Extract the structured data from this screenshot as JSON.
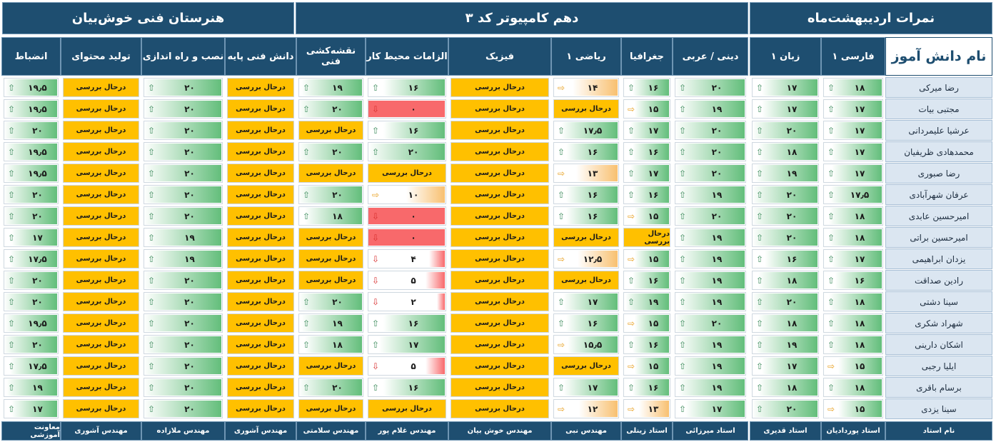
{
  "titles": {
    "school": "هنرستان فنی خوش‌بیان",
    "class": "دهم کامپیوتر کد ۳",
    "grades": "نمرات اردیبهشت‌ماه"
  },
  "columns": [
    {
      "key": "name",
      "label": "نام دانش آموز",
      "teacher": "نام استاد"
    },
    {
      "key": "farsi",
      "label": "فارسی ۱",
      "teacher": "استاد پوردادیان"
    },
    {
      "key": "zaban",
      "label": "زبان ۱",
      "teacher": "استاد قدیری"
    },
    {
      "key": "dini",
      "label": "دینی / عربی",
      "teacher": "استاد میرزائی"
    },
    {
      "key": "joghrafia",
      "label": "جغرافیا",
      "teacher": "استاد زینلی"
    },
    {
      "key": "riazi",
      "label": "ریاضی ۱",
      "teacher": "مهندس نبی"
    },
    {
      "key": "fizik",
      "label": "فیزیک",
      "teacher": "مهندس خوش بیان"
    },
    {
      "key": "elzamat",
      "label": "الزامات محیط کار",
      "teacher": "مهندس غلام پور"
    },
    {
      "key": "naghshe",
      "label": "نقشه‌کشی فنی",
      "teacher": "مهندس سلامتی"
    },
    {
      "key": "danesh",
      "label": "دانش فنی پایه",
      "teacher": "مهندس آشوری"
    },
    {
      "key": "nasb",
      "label": "نصب و راه اندازی",
      "teacher": "مهندس ملازاده"
    },
    {
      "key": "tolid",
      "label": "تولید محتوای",
      "teacher": "مهندس آشوری"
    },
    {
      "key": "enzebat",
      "label": "انضباط",
      "teacher": "معاونت آموزشی"
    }
  ],
  "pending_label": "درحال بررسی",
  "colors": {
    "header_bg": "#1e4e70",
    "pending": "#ffc000",
    "good": "#63be7b",
    "mid": "#f8c070",
    "bad": "#f8696b",
    "name_bg": "#dbe6f1"
  },
  "students": [
    {
      "name": "رضا میرکی",
      "grades": [
        "۱۸",
        "۱۷",
        "۲۰",
        "۱۶",
        "۱۴",
        "P",
        "۱۶",
        "۱۹",
        "P",
        "۲۰",
        "P",
        "۱۹٫۵"
      ]
    },
    {
      "name": "مجتبی بیات",
      "grades": [
        "۱۷",
        "۱۷",
        "۱۹",
        "۱۵",
        "P",
        "P",
        "۰",
        "۲۰",
        "P",
        "۲۰",
        "P",
        "۱۹٫۵"
      ]
    },
    {
      "name": "عرشیا علیمردانی",
      "grades": [
        "۱۷",
        "۲۰",
        "۲۰",
        "۱۷",
        "۱۷٫۵",
        "P",
        "۱۶",
        "P",
        "P",
        "۲۰",
        "P",
        "۲۰"
      ]
    },
    {
      "name": "محمدهادی ظریفیان",
      "grades": [
        "۱۷",
        "۱۸",
        "۲۰",
        "۱۶",
        "۱۶",
        "P",
        "۲۰",
        "۲۰",
        "P",
        "۲۰",
        "P",
        "۱۹٫۵"
      ]
    },
    {
      "name": "رضا صبوری",
      "grades": [
        "۱۷",
        "۱۹",
        "۲۰",
        "۱۷",
        "۱۳",
        "P",
        "P",
        "P",
        "P",
        "۲۰",
        "P",
        "۱۹٫۵"
      ]
    },
    {
      "name": "عرفان شهرآبادی",
      "grades": [
        "۱۷٫۵",
        "۲۰",
        "۱۹",
        "۱۶",
        "۱۶",
        "P",
        "۱۰",
        "۲۰",
        "P",
        "۲۰",
        "P",
        "۲۰"
      ]
    },
    {
      "name": "امیرحسین عابدی",
      "grades": [
        "۱۸",
        "۲۰",
        "۲۰",
        "۱۵",
        "۱۶",
        "P",
        "۰",
        "۱۸",
        "P",
        "۲۰",
        "P",
        "۲۰"
      ]
    },
    {
      "name": "امیرحسین براتی",
      "grades": [
        "۱۸",
        "۲۰",
        "۱۹",
        "P",
        "P",
        "P",
        "۰",
        "P",
        "P",
        "۱۹",
        "P",
        "۱۷"
      ]
    },
    {
      "name": "یزدان ابراهیمی",
      "grades": [
        "۱۷",
        "۱۶",
        "۱۹",
        "۱۵",
        "۱۲٫۵",
        "P",
        "۴",
        "P",
        "P",
        "۱۹",
        "P",
        "۱۷٫۵"
      ]
    },
    {
      "name": "رادین صداقت",
      "grades": [
        "۱۶",
        "۱۸",
        "۱۹",
        "۱۶",
        "P",
        "P",
        "۵",
        "P",
        "P",
        "۲۰",
        "P",
        "۲۰"
      ]
    },
    {
      "name": "سینا دشتی",
      "grades": [
        "۱۸",
        "۲۰",
        "۱۹",
        "۱۹",
        "۱۷",
        "P",
        "۲",
        "۲۰",
        "P",
        "۲۰",
        "P",
        "۲۰"
      ]
    },
    {
      "name": "شهراد شکری",
      "grades": [
        "۱۸",
        "۱۸",
        "۲۰",
        "۱۵",
        "۱۶",
        "P",
        "۱۶",
        "۱۹",
        "P",
        "۲۰",
        "P",
        "۱۹٫۵"
      ]
    },
    {
      "name": "اشکان دارینی",
      "grades": [
        "۱۸",
        "۱۹",
        "۱۹",
        "۱۶",
        "۱۵٫۵",
        "P",
        "۱۷",
        "۱۸",
        "P",
        "۲۰",
        "P",
        "۲۰"
      ]
    },
    {
      "name": "ایلیا رجبی",
      "grades": [
        "۱۵",
        "۱۷",
        "۱۹",
        "۱۵",
        "P",
        "P",
        "۵",
        "P",
        "P",
        "۲۰",
        "P",
        "۱۷٫۵"
      ]
    },
    {
      "name": "برسام باقری",
      "grades": [
        "۱۸",
        "۱۸",
        "۱۹",
        "۱۶",
        "۱۷",
        "P",
        "۱۶",
        "۲۰",
        "P",
        "۲۰",
        "P",
        "۱۹"
      ]
    },
    {
      "name": "سینا یزدی",
      "grades": [
        "۱۵",
        "۲۰",
        "۱۷",
        "۱۳",
        "۱۲",
        "P",
        "P",
        "P",
        "P",
        "۲۰",
        "P",
        "۱۷"
      ]
    }
  ]
}
